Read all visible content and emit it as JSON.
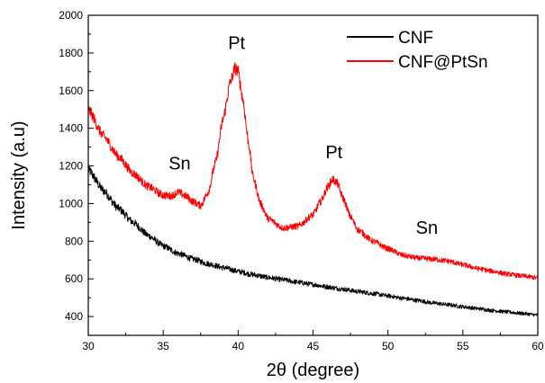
{
  "chart_data": {
    "type": "line",
    "title": "",
    "xlabel": "2θ (degree)",
    "ylabel": "Intensity (a.u)",
    "xlim": [
      30,
      60
    ],
    "ylim": [
      300,
      2000
    ],
    "x_ticks": [
      30,
      35,
      40,
      45,
      50,
      55,
      60
    ],
    "y_ticks": [
      400,
      600,
      800,
      1000,
      1200,
      1400,
      1600,
      1800,
      2000
    ],
    "grid": false,
    "legend_position": "top-right",
    "series": [
      {
        "name": "CNF",
        "color": "#000000",
        "x": [
          30,
          31,
          32,
          33,
          34,
          35,
          36,
          37,
          38,
          39,
          40,
          41,
          42,
          43,
          44,
          45,
          46,
          47,
          48,
          49,
          50,
          51,
          52,
          53,
          54,
          55,
          56,
          57,
          58,
          59,
          60
        ],
        "y": [
          1180,
          1070,
          975,
          900,
          830,
          775,
          735,
          705,
          680,
          660,
          640,
          622,
          607,
          595,
          582,
          570,
          557,
          545,
          533,
          522,
          510,
          497,
          485,
          472,
          463,
          452,
          442,
          432,
          424,
          416,
          408
        ]
      },
      {
        "name": "CNF@PtSn",
        "color": "#ff0000",
        "x": [
          30,
          31,
          32,
          33,
          34,
          35,
          35.5,
          36,
          36.5,
          37,
          37.5,
          38,
          38.5,
          39,
          39.5,
          39.8,
          40,
          40.3,
          40.7,
          41,
          41.5,
          42,
          43,
          44,
          45,
          45.5,
          46,
          46.3,
          46.6,
          47,
          47.5,
          48,
          49,
          50,
          51,
          52,
          53,
          54,
          55,
          56,
          57,
          58,
          59,
          60
        ],
        "y": [
          1500,
          1360,
          1250,
          1160,
          1090,
          1045,
          1040,
          1060,
          1040,
          1010,
          990,
          1060,
          1220,
          1450,
          1650,
          1720,
          1700,
          1560,
          1320,
          1140,
          1000,
          920,
          870,
          880,
          940,
          1010,
          1090,
          1130,
          1110,
          1030,
          930,
          860,
          800,
          760,
          725,
          710,
          705,
          695,
          675,
          655,
          640,
          625,
          615,
          605
        ]
      }
    ],
    "annotations": [
      {
        "text": "Pt",
        "x": 39.9,
        "y": 1820
      },
      {
        "text": "Pt",
        "x": 46.4,
        "y": 1240
      },
      {
        "text": "Sn",
        "x": 36.1,
        "y": 1180
      },
      {
        "text": "Sn",
        "x": 52.6,
        "y": 840
      }
    ]
  },
  "colors": {
    "axis": "#000000",
    "background": "#ffffff"
  }
}
